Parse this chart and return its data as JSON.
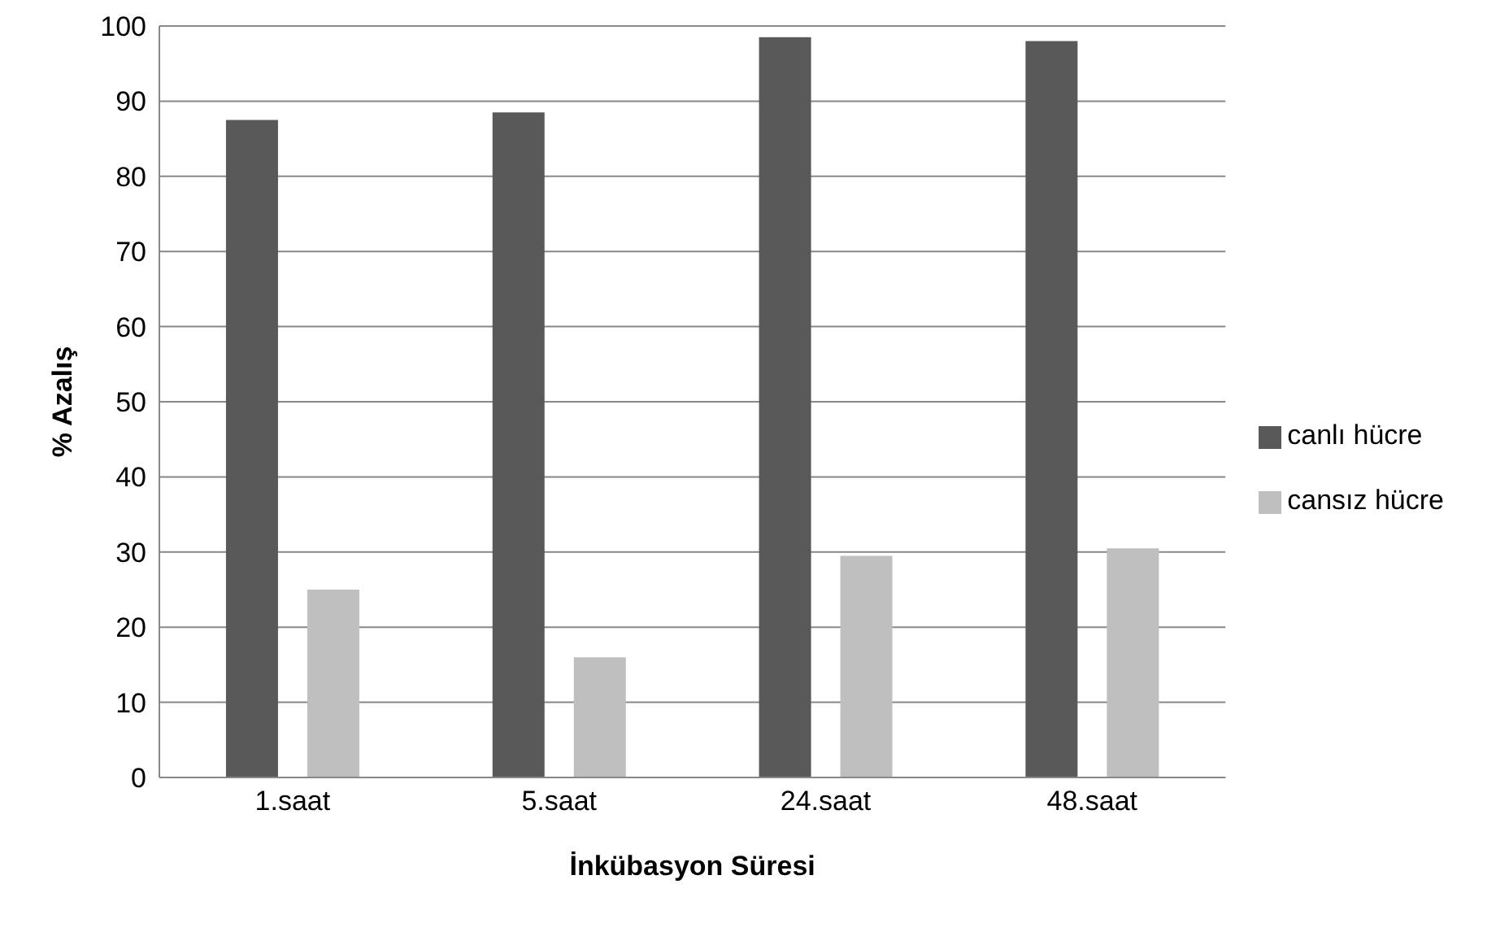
{
  "chart_data": {
    "type": "bar",
    "xlabel": "İnkübasyon Süresi",
    "ylabel": "% Azalış",
    "categories": [
      "1.saat",
      "5.saat",
      "24.saat",
      "48.saat"
    ],
    "series": [
      {
        "name": "canlı hücre",
        "color": "#595959",
        "values": [
          87.5,
          88.5,
          98.5,
          98
        ]
      },
      {
        "name": "cansız hücre",
        "color": "#bfbfbf",
        "values": [
          25,
          16,
          29.5,
          30.5
        ]
      }
    ],
    "ylim": [
      0,
      100
    ],
    "yticks": [
      0,
      10,
      20,
      30,
      40,
      50,
      60,
      70,
      80,
      90,
      100
    ],
    "grid": "y",
    "legend": "right"
  }
}
